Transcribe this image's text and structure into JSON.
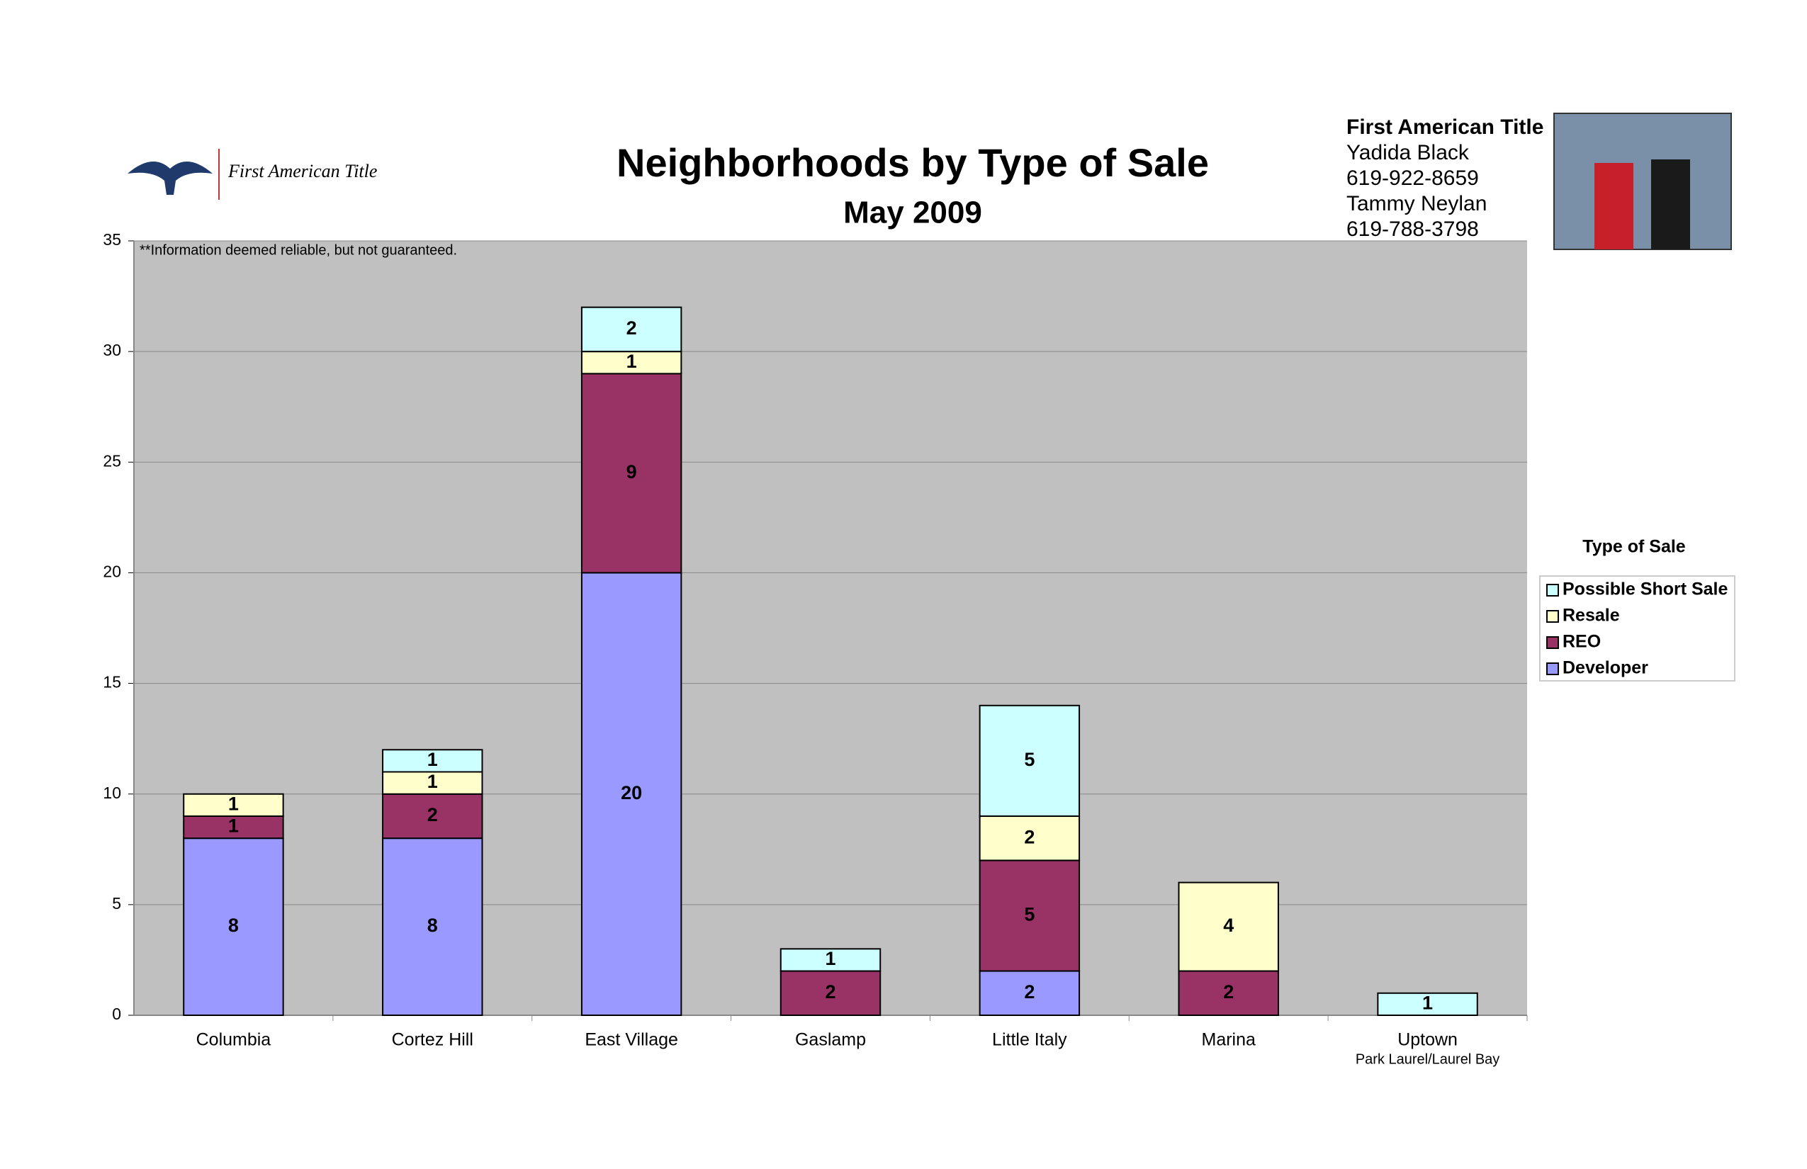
{
  "chart_data": {
    "type": "stacked_bar",
    "logo_text": "First American Title",
    "title": "Neighborhoods by Type of Sale",
    "subtitle": "May 2009",
    "contact": [
      "First American Title",
      "Yadida Black",
      "619-922-8659",
      "Tammy Neylan",
      "619-788-3798"
    ],
    "note": "**Information deemed reliable, but not guaranteed.",
    "categories": [
      "Columbia",
      "Cortez Hill",
      "East Village",
      "Gaslamp",
      "Little Italy",
      "Marina",
      "Uptown"
    ],
    "category_sublabels": [
      null,
      null,
      null,
      null,
      null,
      null,
      "Park Laurel/Laurel Bay"
    ],
    "legend_title": "Type of Sale",
    "series": [
      {
        "name": "Developer",
        "color": "#9999ff",
        "values": [
          8,
          8,
          20,
          null,
          2,
          null,
          null
        ]
      },
      {
        "name": "REO",
        "color": "#993366",
        "values": [
          1,
          2,
          9,
          2,
          5,
          2,
          null
        ]
      },
      {
        "name": "Resale",
        "color": "#ffffcc",
        "values": [
          1,
          1,
          1,
          null,
          2,
          4,
          null
        ]
      },
      {
        "name": "Possible Short Sale",
        "color": "#ccffff",
        "values": [
          null,
          1,
          2,
          1,
          5,
          null,
          1
        ]
      }
    ],
    "ylim": [
      0,
      35
    ],
    "yticks": [
      0,
      5,
      10,
      15,
      20,
      25,
      30,
      35
    ],
    "grid": true,
    "plot_background": "#c0c0c0"
  }
}
